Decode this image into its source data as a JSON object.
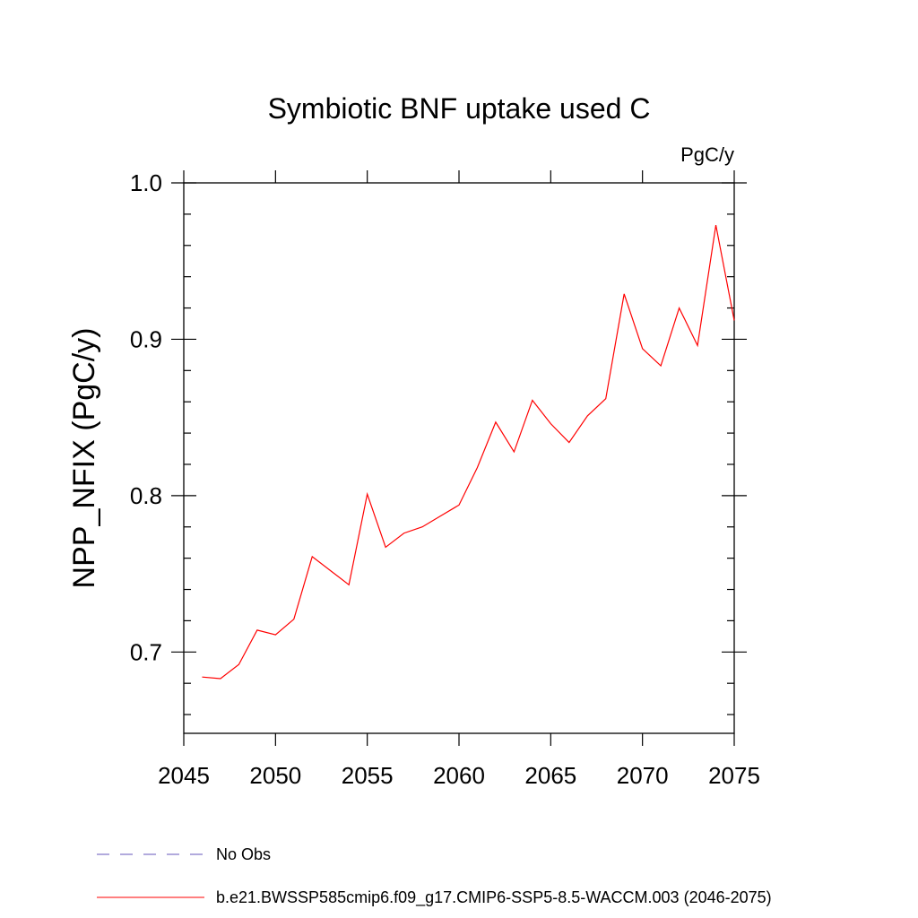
{
  "chart_data": {
    "type": "line",
    "title": "Symbiotic BNF uptake used C",
    "units_label": "PgC/y",
    "ylabel": "NPP_NFIX  (PgC/y)",
    "xlabel": "",
    "xlim": [
      2045,
      2075
    ],
    "ylim": [
      0.648,
      1.0
    ],
    "x_ticks": [
      2045,
      2050,
      2055,
      2060,
      2065,
      2070,
      2075
    ],
    "x_tick_labels": [
      "2045",
      "2050",
      "2055",
      "2060",
      "2065",
      "2070",
      "2075"
    ],
    "y_ticks": [
      0.7,
      0.8,
      0.9,
      1.0
    ],
    "y_tick_labels": [
      "0.7",
      "0.8",
      "0.9",
      "1.0"
    ],
    "y_minor_step": 0.02,
    "x_minor_step": 1,
    "grid": false,
    "legend_placement": "bottom",
    "series": [
      {
        "name": "b.e21.BWSSP585cmip6.f09_g17.CMIP6-SSP5-8.5-WACCM.003 (2046-2075)",
        "color": "#ff0000",
        "dash": "solid",
        "x": [
          2046,
          2047,
          2048,
          2049,
          2050,
          2051,
          2052,
          2053,
          2054,
          2055,
          2056,
          2057,
          2058,
          2059,
          2060,
          2061,
          2062,
          2063,
          2064,
          2065,
          2066,
          2067,
          2068,
          2069,
          2070,
          2071,
          2072,
          2073,
          2074,
          2075
        ],
        "values": [
          0.684,
          0.683,
          0.692,
          0.714,
          0.711,
          0.721,
          0.761,
          0.752,
          0.743,
          0.801,
          0.767,
          0.776,
          0.78,
          0.787,
          0.794,
          0.818,
          0.847,
          0.828,
          0.861,
          0.846,
          0.834,
          0.851,
          0.862,
          0.929,
          0.894,
          0.883,
          0.92,
          0.896,
          0.973,
          0.912
        ]
      },
      {
        "name": "No Obs",
        "color": "#6655bb",
        "dash": "dashed",
        "x": [],
        "values": []
      }
    ]
  }
}
